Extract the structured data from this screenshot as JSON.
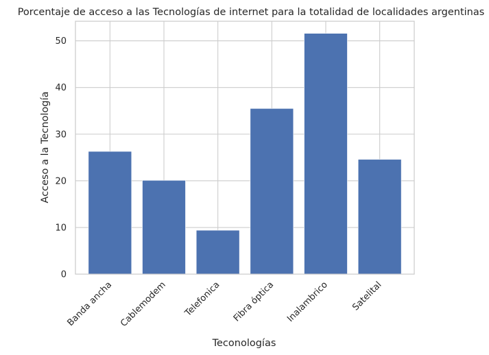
{
  "chart_data": {
    "type": "bar",
    "title": "Porcentaje de acceso a las Tecnologías de internet para la totalidad de localidades argentinas",
    "xlabel": "Teconologías",
    "ylabel": "Acceso a la Tecnología",
    "categories": [
      "Banda ancha",
      "Cablemodem",
      "Telefonica",
      "Fibra óptica",
      "Inalambrico",
      "Satelital"
    ],
    "values": [
      26.3,
      20.1,
      9.4,
      35.5,
      51.6,
      24.6
    ],
    "yticks": [
      0,
      10,
      20,
      30,
      40,
      50
    ],
    "ylim": [
      0,
      54.2
    ],
    "grid": true,
    "bar_color": "#4c72b0",
    "grid_color": "#cccccc"
  }
}
